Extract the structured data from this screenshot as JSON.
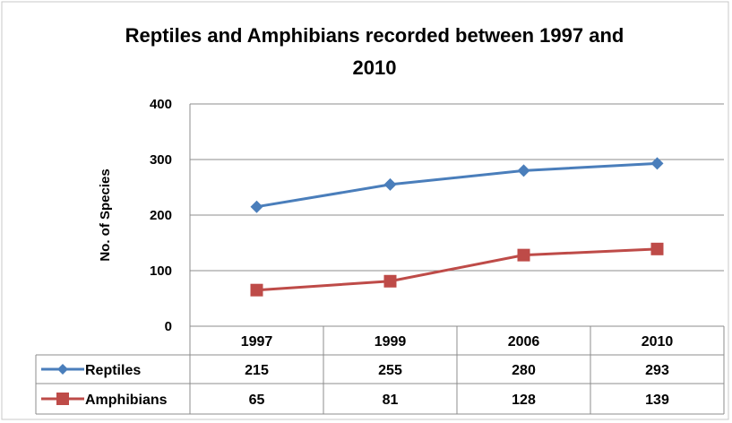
{
  "chart_data": {
    "type": "line",
    "title": "Reptiles and Amphibians recorded between 1997 and 2010",
    "title_lines": [
      "Reptiles and Amphibians recorded between 1997 and",
      "2010"
    ],
    "xlabel": "",
    "ylabel": "No. of Species",
    "ylim": [
      0,
      400
    ],
    "yticks": [
      0,
      100,
      200,
      300,
      400
    ],
    "grid": true,
    "legend": "data-table",
    "categories": [
      "1997",
      "1999",
      "2006",
      "2010"
    ],
    "series": [
      {
        "name": "Reptiles",
        "values": [
          215,
          255,
          280,
          293
        ],
        "color": "#4A7EBB",
        "marker": "diamond"
      },
      {
        "name": "Amphibians",
        "values": [
          65,
          81,
          128,
          139
        ],
        "color": "#BE4B48",
        "marker": "square"
      }
    ]
  }
}
